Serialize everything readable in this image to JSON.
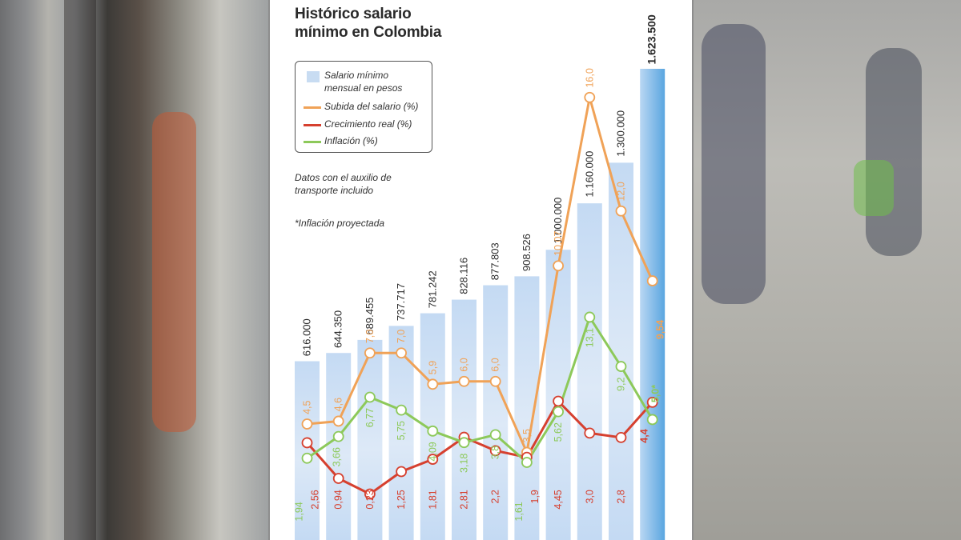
{
  "chart_data": {
    "type": "bar",
    "title": "Histórico salario mínimo en Colombia",
    "legend": [
      {
        "label": "Salario mínimo mensual en pesos",
        "color": "#c8dcf2",
        "kind": "bar"
      },
      {
        "label": "Subida del salario (%)",
        "color": "#f0a257",
        "kind": "line"
      },
      {
        "label": "Crecimiento real (%)",
        "color": "#d6402f",
        "kind": "line"
      },
      {
        "label": "Inflación (%)",
        "color": "#8dc95a",
        "kind": "line"
      }
    ],
    "notes": [
      "Datos con el auxilio de transporte incluido",
      "*Inflación proyectada"
    ],
    "bar_labels": [
      "616.000",
      "644.350",
      "689.455",
      "737.717",
      "781.242",
      "828.116",
      "877.803",
      "908.526",
      "1.000.000",
      "1.160.000",
      "1.300.000",
      "1.623.500"
    ],
    "bar_values": [
      616000,
      644350,
      689455,
      737717,
      781242,
      828116,
      877803,
      908526,
      1000000,
      1160000,
      1300000,
      1623500
    ],
    "series": [
      {
        "name": "Subida del salario (%)",
        "values": [
          4.5,
          4.6,
          7.0,
          7.0,
          5.9,
          6.0,
          6.0,
          3.5,
          10.07,
          16.0,
          12.0,
          9.54
        ],
        "labels": [
          "4,5",
          "4,6",
          "7,0",
          "7,0",
          "5,9",
          "6,0",
          "6,0",
          "3,5",
          "10,07",
          "16,0",
          "12,0",
          "9,54"
        ]
      },
      {
        "name": "Crecimiento real (%)",
        "values": [
          2.56,
          0.94,
          0.23,
          1.25,
          1.81,
          2.81,
          2.2,
          1.9,
          4.45,
          3.0,
          2.8,
          4.4
        ],
        "labels": [
          "2,56",
          "0,94",
          "0,23",
          "1,25",
          "1,81",
          "2,81",
          "2,2",
          "1,9",
          "4,45",
          "3,0",
          "2,8",
          "4,4"
        ]
      },
      {
        "name": "Inflación (%)",
        "values": [
          1.94,
          3.66,
          6.77,
          5.75,
          4.09,
          3.18,
          3.8,
          1.61,
          5.62,
          13.1,
          9.2,
          5.0
        ],
        "labels": [
          "1,94",
          "3,66",
          "6,77",
          "5,75",
          "4,09",
          "3,18",
          "3,8",
          "1,61",
          "5,62",
          "13,1",
          "9,2",
          "5,0*"
        ]
      }
    ],
    "colors": {
      "bar": "#c8dcf2",
      "bar_last": "#6aaee3",
      "salary": "#f0a257",
      "real": "#d6402f",
      "inflation": "#8dc95a"
    }
  }
}
